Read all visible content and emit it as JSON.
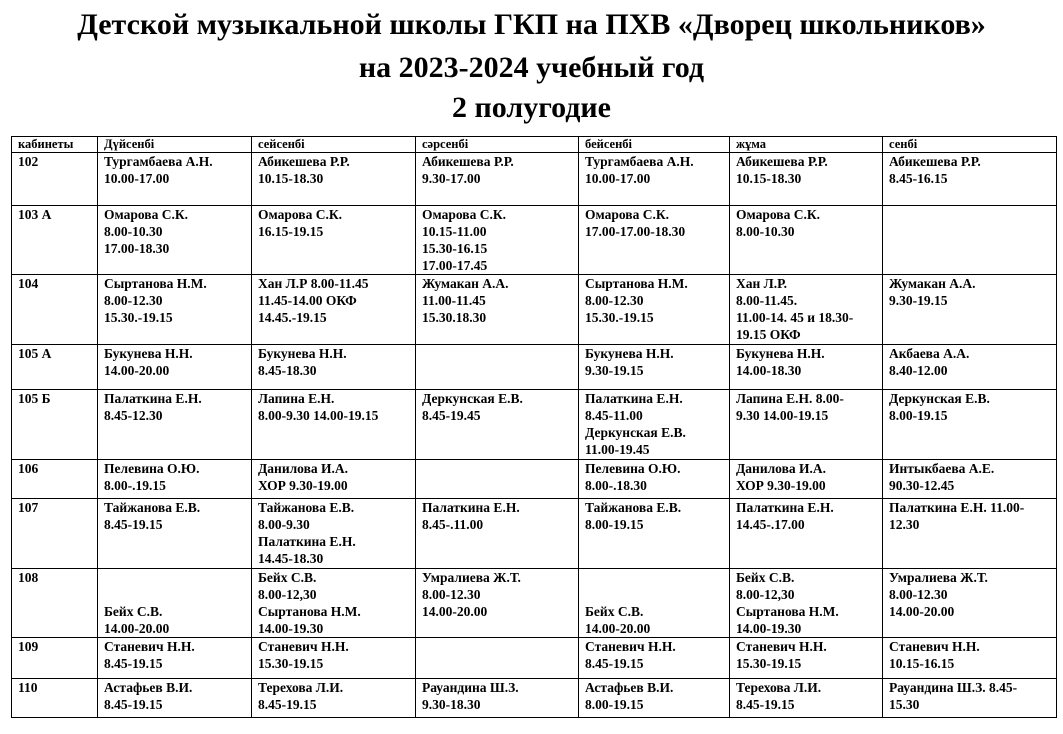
{
  "header": {
    "line1": "Детской музыкальной школы ГКП на ПХВ «Дворец школьников»",
    "line2": "на 2023-2024 учебный год",
    "line3": "2 полугодие"
  },
  "table": {
    "columns": [
      "кабинеты",
      "Дүйсенбі",
      "сейсенбі",
      "сәрсенбі",
      "бейсенбі",
      "жұма",
      "сенбі"
    ],
    "rows": [
      [
        "102",
        "Тургамбаева А.Н.\n10.00-17.00",
        "Абикешева Р.Р.\n10.15-18.30",
        "Абикешева Р.Р.\n9.30-17.00",
        "Тургамбаева А.Н.\n10.00-17.00",
        "Абикешева Р.Р.\n10.15-18.30",
        "Абикешева Р.Р.\n8.45-16.15"
      ],
      [
        "103 А",
        "Омарова С.К.\n8.00-10.30\n17.00-18.30",
        "Омарова С.К.\n16.15-19.15",
        "Омарова С.К.\n10.15-11.00\n15.30-16.15\n17.00-17.45",
        "Омарова С.К.\n17.00-17.00-18.30",
        "Омарова С.К.\n8.00-10.30",
        ""
      ],
      [
        "104",
        "Сыртанова Н.М.\n8.00-12.30\n15.30.-19.15",
        "Хан Л.Р 8.00-11.45\n11.45-14.00 ОКФ\n14.45.-19.15",
        "Жумакан А.А.\n11.00-11.45\n15.30.18.30",
        "Сыртанова Н.М.\n8.00-12.30\n15.30.-19.15",
        "Хан Л.Р.\n8.00-11.45.\n11.00-14. 45 и 18.30-\n19.15 ОКФ",
        "Жумакан А.А.\n 9.30-19.15"
      ],
      [
        "105 А",
        "Букунева Н.Н.\n14.00-20.00",
        "Букунева Н.Н.\n8.45-18.30",
        "",
        "Букунева Н.Н.\n9.30-19.15",
        "Букунева Н.Н.\n14.00-18.30",
        "Акбаева А.А.\n 8.40-12.00"
      ],
      [
        "105 Б",
        "Палаткина Е.Н.\n8.45-12.30",
        "Лапина Е.Н.\n8.00-9.30  14.00-19.15",
        "Деркунская Е.В.\n 8.45-19.45",
        "Палаткина Е.Н.\n8.45-11.00\nДеркунская Е.В.\n11.00-19.45",
        "Лапина Е.Н. 8.00-\n9.30  14.00-19.15",
        "Деркунская Е.В.\n 8.00-19.15"
      ],
      [
        "106",
        "Пелевина О.Ю.\n8.00-.19.15",
        "Данилова И.А.\n ХОР 9.30-19.00",
        "",
        "Пелевина О.Ю.\n8.00-.18.30",
        "Данилова И.А.\n ХОР 9.30-19.00",
        "Интыкбаева А.Е.\n90.30-12.45"
      ],
      [
        "107",
        "Тайжанова Е.В.\n8.45-19.15",
        "Тайжанова Е.В.\n8.00-9.30\nПалаткина Е.Н.\n14.45-18.30",
        "Палаткина Е.Н.\n8.45-.11.00",
        "Тайжанова Е.В.\n8.00-19.15",
        "Палаткина Е.Н.\n14.45-.17.00",
        "Палаткина Е.Н. 11.00-\n12.30"
      ],
      [
        "108",
        "\n\nБейх С.В.\n14.00-20.00",
        "Бейх С.В.\n8.00-12,30\nСыртанова Н.М.\n14.00-19.30",
        "Умралиева Ж.Т.\n8.00-12.30\n14.00-20.00",
        "\n\nБейх С.В.\n14.00-20.00",
        "Бейх С.В.\n8.00-12,30\nСыртанова Н.М.\n14.00-19.30",
        "Умралиева Ж.Т.\n8.00-12.30\n14.00-20.00"
      ],
      [
        "109",
        "Станевич Н.Н.\n8.45-19.15",
        "Станевич Н.Н.\n15.30-19.15",
        "",
        "Станевич Н.Н.\n8.45-19.15",
        "Станевич Н.Н.\n15.30-19.15",
        "Станевич Н.Н.\n10.15-16.15"
      ],
      [
        "110",
        "Астафьев В.И.\n8.45-19.15",
        "Терехова Л.И.\n8.45-19.15",
        "Рауандина Ш.З.\n9.30-18.30",
        "Астафьев В.И.\n8.00-19.15",
        "Терехова Л.И.\n8.45-19.15",
        "Рауандина Ш.З. 8.45-\n15.30"
      ]
    ]
  }
}
